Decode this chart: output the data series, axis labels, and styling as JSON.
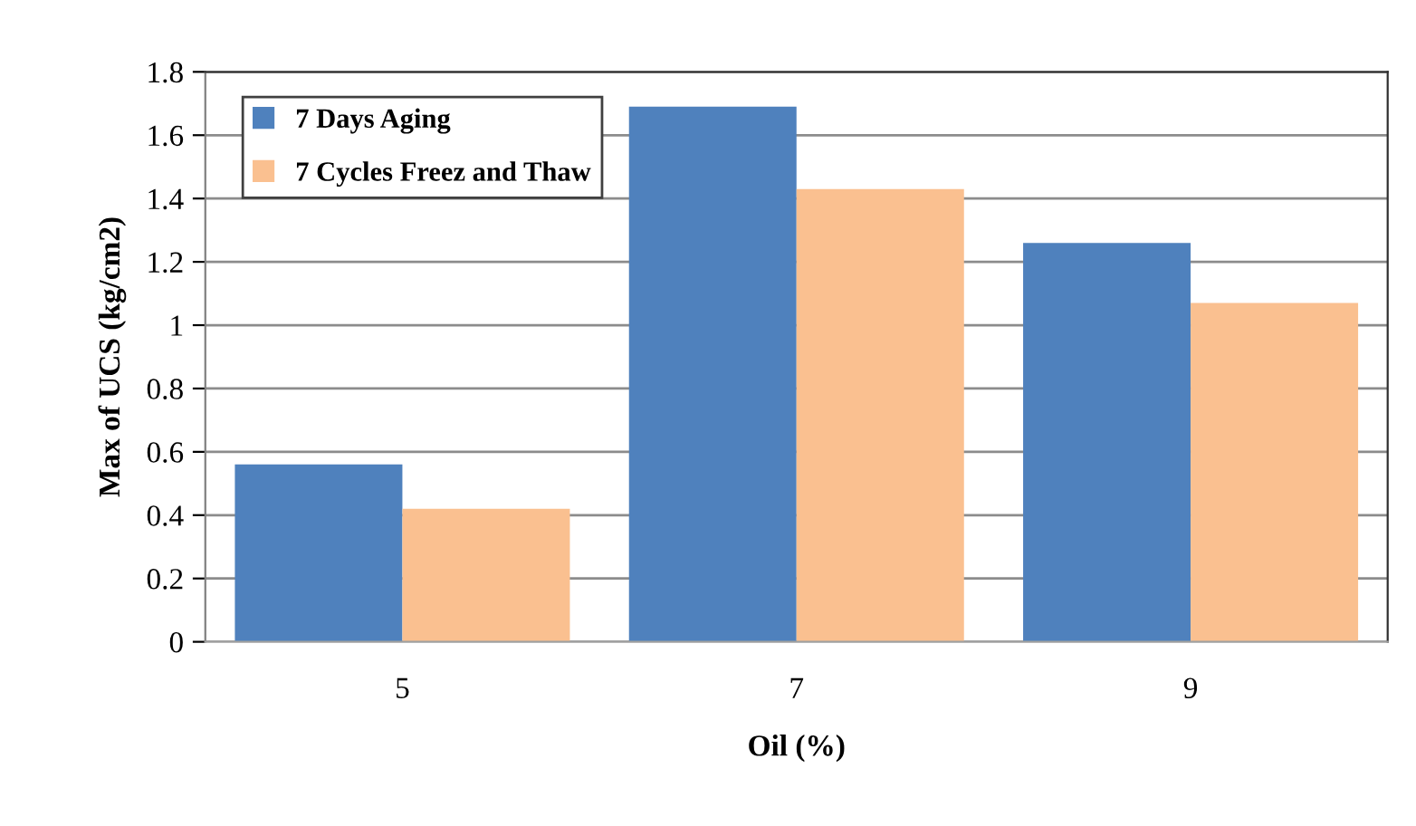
{
  "chart_data": {
    "type": "bar",
    "xlabel": "Oil (%)",
    "ylabel": "Max of UCS (kg/cm2)",
    "categories": [
      "5",
      "7",
      "9"
    ],
    "series": [
      {
        "name": "7 Days Aging",
        "color": "#4f81bd",
        "values": [
          0.56,
          1.69,
          1.26
        ]
      },
      {
        "name": "7 Cycles Freez and Thaw",
        "color": "#fac090",
        "values": [
          0.42,
          1.43,
          1.07
        ]
      }
    ],
    "ylim": [
      0,
      1.8
    ],
    "yticks": [
      0,
      {
        "value": 0.2,
        "label": "0.2"
      },
      {
        "value": 0.4,
        "label": "0.4"
      },
      {
        "value": 0.6,
        "label": "0.6"
      },
      {
        "value": 0.8,
        "label": "0.8"
      },
      1,
      {
        "value": 1.2,
        "label": "1.2"
      },
      {
        "value": 1.4,
        "label": "1.4"
      },
      {
        "value": 1.6,
        "label": "1.6"
      },
      {
        "value": 1.8,
        "label": "1.8"
      }
    ],
    "grid": "y",
    "legend": "top left"
  }
}
